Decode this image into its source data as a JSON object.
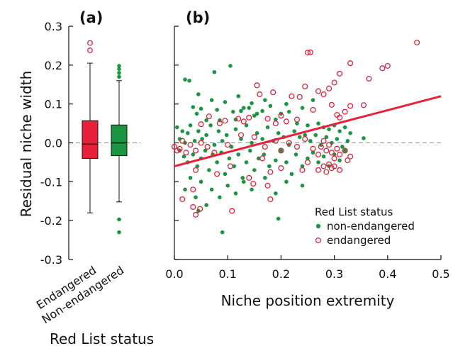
{
  "chart_data": [
    {
      "panel": "(a)",
      "type": "box",
      "ylabel": "Residual niche width",
      "xlabel": "Red List status",
      "ylim": [
        -0.3,
        0.3
      ],
      "yticks": [
        "0.3",
        "0.2",
        "0.1",
        "0.0",
        "-0.1",
        "-0.2",
        "-0.3"
      ],
      "yticks_values": [
        0.3,
        0.2,
        0.1,
        0.0,
        -0.1,
        -0.2,
        -0.3
      ],
      "categories": [
        "Endangered",
        "Non-endangered"
      ],
      "reference_line": 0.0,
      "boxes": [
        {
          "category": "Endangered",
          "color": "#e8203a",
          "whisker_low": -0.18,
          "q1": -0.04,
          "median": -0.003,
          "q3": 0.057,
          "whisker_high": 0.205,
          "outliers": [
            0.238,
            0.257
          ]
        },
        {
          "category": "Non-endangered",
          "color": "#1a9641",
          "whisker_low": -0.152,
          "q1": -0.033,
          "median": 0.0,
          "q3": 0.046,
          "whisker_high": 0.16,
          "outliers": [
            0.17,
            0.18,
            0.19,
            0.198,
            -0.197,
            -0.23
          ]
        }
      ]
    },
    {
      "panel": "(b)",
      "type": "scatter",
      "xlabel": "Niche position extremity",
      "xlim": [
        0.0,
        0.5
      ],
      "ylim": [
        -0.3,
        0.3
      ],
      "xticks": [
        "0.0",
        "0.1",
        "0.2",
        "0.3",
        "0.4",
        "0.5"
      ],
      "xticks_values": [
        0.0,
        0.1,
        0.2,
        0.3,
        0.4,
        0.5
      ],
      "reference_line": 0.0,
      "regression_line": {
        "x": [
          0.0,
          0.5
        ],
        "y": [
          -0.06,
          0.12
        ],
        "color": "#e8203a"
      },
      "legend": {
        "title": "Red List status",
        "position": "lower-right",
        "entries": [
          {
            "label": "non-endangered",
            "marker": "filled",
            "color": "#1a9641"
          },
          {
            "label": "endangered",
            "marker": "open",
            "color": "#e8203a"
          }
        ]
      },
      "series": [
        {
          "name": "non-endangered",
          "marker": "filled",
          "color": "#1a9641",
          "points": [
            [
              0.02,
              0.163
            ],
            [
              0.028,
              0.16
            ],
            [
              0.035,
              0.092
            ],
            [
              0.042,
              0.075
            ],
            [
              0.045,
              0.125
            ],
            [
              0.05,
              0.088
            ],
            [
              0.06,
              0.058
            ],
            [
              0.07,
              0.11
            ],
            [
              0.075,
              0.182
            ],
            [
              0.08,
              0.085
            ],
            [
              0.085,
              0.058
            ],
            [
              0.095,
              0.105
            ],
            [
              0.105,
              0.198
            ],
            [
              0.11,
              0.08
            ],
            [
              0.115,
              0.06
            ],
            [
              0.12,
              0.12
            ],
            [
              0.125,
              0.082
            ],
            [
              0.13,
              0.09
            ],
            [
              0.14,
              0.09
            ],
            [
              0.145,
              0.102
            ],
            [
              0.15,
              0.07
            ],
            [
              0.155,
              0.075
            ],
            [
              0.165,
              0.082
            ],
            [
              0.17,
              0.11
            ],
            [
              0.18,
              0.095
            ],
            [
              0.19,
              0.06
            ],
            [
              0.2,
              0.075
            ],
            [
              0.21,
              0.1
            ],
            [
              0.215,
              0.08
            ],
            [
              0.23,
              0.05
            ],
            [
              0.24,
              0.09
            ],
            [
              0.25,
              0.045
            ],
            [
              0.26,
              0.11
            ],
            [
              0.27,
              0.05
            ],
            [
              0.28,
              0.04
            ],
            [
              0.29,
              0.035
            ],
            [
              0.3,
              0.045
            ],
            [
              0.31,
              0.03
            ],
            [
              0.32,
              0.04
            ],
            [
              0.33,
              0.025
            ],
            [
              0.355,
              0.012
            ],
            [
              0.005,
              0.04
            ],
            [
              0.01,
              0.01
            ],
            [
              0.015,
              0.03
            ],
            [
              0.02,
              0.0
            ],
            [
              0.025,
              0.025
            ],
            [
              0.03,
              0.045
            ],
            [
              0.038,
              0.005
            ],
            [
              0.045,
              0.03
            ],
            [
              0.052,
              0.01
            ],
            [
              0.06,
              0.02
            ],
            [
              0.068,
              0.045
            ],
            [
              0.075,
              -0.005
            ],
            [
              0.083,
              0.03
            ],
            [
              0.09,
              0.005
            ],
            [
              0.098,
              0.02
            ],
            [
              0.107,
              -0.01
            ],
            [
              0.115,
              0.035
            ],
            [
              0.125,
              0.01
            ],
            [
              0.135,
              0.045
            ],
            [
              0.145,
              0.0
            ],
            [
              0.155,
              0.025
            ],
            [
              0.165,
              0.01
            ],
            [
              0.175,
              0.04
            ],
            [
              0.185,
              0.005
            ],
            [
              0.195,
              0.025
            ],
            [
              0.205,
              0.015
            ],
            [
              0.215,
              -0.005
            ],
            [
              0.225,
              0.03
            ],
            [
              0.235,
              0.015
            ],
            [
              0.245,
              0.02
            ],
            [
              0.255,
              0.005
            ],
            [
              0.265,
              0.02
            ],
            [
              0.275,
              -0.005
            ],
            [
              0.285,
              0.015
            ],
            [
              0.295,
              0.0
            ],
            [
              0.305,
              0.01
            ],
            [
              0.315,
              -0.01
            ],
            [
              0.325,
              0.005
            ],
            [
              0.01,
              -0.02
            ],
            [
              0.018,
              -0.035
            ],
            [
              0.025,
              -0.05
            ],
            [
              0.035,
              -0.03
            ],
            [
              0.043,
              -0.06
            ],
            [
              0.05,
              -0.04
            ],
            [
              0.058,
              -0.02
            ],
            [
              0.065,
              -0.07
            ],
            [
              0.072,
              -0.03
            ],
            [
              0.08,
              -0.05
            ],
            [
              0.088,
              -0.025
            ],
            [
              0.095,
              -0.08
            ],
            [
              0.103,
              -0.04
            ],
            [
              0.112,
              -0.06
            ],
            [
              0.12,
              -0.03
            ],
            [
              0.128,
              -0.09
            ],
            [
              0.135,
              -0.05
            ],
            [
              0.142,
              -0.02
            ],
            [
              0.15,
              -0.07
            ],
            [
              0.158,
              -0.04
            ],
            [
              0.168,
              -0.03
            ],
            [
              0.178,
              -0.06
            ],
            [
              0.19,
              -0.045
            ],
            [
              0.2,
              -0.02
            ],
            [
              0.21,
              -0.05
            ],
            [
              0.22,
              -0.08
            ],
            [
              0.228,
              -0.03
            ],
            [
              0.24,
              -0.06
            ],
            [
              0.25,
              -0.04
            ],
            [
              0.26,
              -0.025
            ],
            [
              0.27,
              -0.05
            ],
            [
              0.28,
              -0.035
            ],
            [
              0.29,
              -0.06
            ],
            [
              0.3,
              -0.03
            ],
            [
              0.31,
              -0.045
            ],
            [
              0.32,
              -0.02
            ],
            [
              0.02,
              -0.12
            ],
            [
              0.03,
              -0.09
            ],
            [
              0.04,
              -0.14
            ],
            [
              0.05,
              -0.1
            ],
            [
              0.06,
              -0.16
            ],
            [
              0.07,
              -0.12
            ],
            [
              0.085,
              -0.14
            ],
            [
              0.1,
              -0.11
            ],
            [
              0.115,
              -0.13
            ],
            [
              0.13,
              -0.1
            ],
            [
              0.145,
              -0.12
            ],
            [
              0.17,
              -0.09
            ],
            [
              0.19,
              -0.13
            ],
            [
              0.21,
              -0.1
            ],
            [
              0.24,
              -0.11
            ],
            [
              0.09,
              -0.23
            ],
            [
              0.195,
              -0.195
            ],
            [
              0.045,
              -0.175
            ]
          ]
        },
        {
          "name": "endangered",
          "marker": "open",
          "color": "#e8203a",
          "points": [
            [
              0.455,
              0.258
            ],
            [
              0.4,
              0.198
            ],
            [
              0.39,
              0.192
            ],
            [
              0.33,
              0.205
            ],
            [
              0.365,
              0.165
            ],
            [
              0.25,
              0.232
            ],
            [
              0.255,
              0.233
            ],
            [
              0.31,
              0.178
            ],
            [
              0.3,
              0.155
            ],
            [
              0.29,
              0.14
            ],
            [
              0.28,
              0.125
            ],
            [
              0.27,
              0.133
            ],
            [
              0.295,
              0.098
            ],
            [
              0.245,
              0.145
            ],
            [
              0.235,
              0.118
            ],
            [
              0.22,
              0.12
            ],
            [
              0.185,
              0.13
            ],
            [
              0.155,
              0.148
            ],
            [
              0.16,
              0.125
            ],
            [
              0.355,
              0.097
            ],
            [
              0.33,
              0.095
            ],
            [
              0.32,
              0.08
            ],
            [
              0.305,
              0.072
            ],
            [
              0.31,
              0.065
            ],
            [
              0.26,
              0.085
            ],
            [
              0.23,
              0.06
            ],
            [
              0.21,
              0.055
            ],
            [
              0.2,
              0.07
            ],
            [
              0.19,
              0.05
            ],
            [
              0.175,
              0.062
            ],
            [
              0.14,
              0.065
            ],
            [
              0.13,
              0.055
            ],
            [
              0.12,
              0.062
            ],
            [
              0.095,
              0.057
            ],
            [
              0.085,
              0.05
            ],
            [
              0.065,
              0.068
            ],
            [
              0.05,
              0.048
            ],
            [
              0.0,
              -0.01
            ],
            [
              0.005,
              -0.02
            ],
            [
              0.01,
              -0.015
            ],
            [
              0.015,
              0.005
            ],
            [
              0.022,
              -0.025
            ],
            [
              0.03,
              -0.005
            ],
            [
              0.04,
              -0.02
            ],
            [
              0.05,
              0.0
            ],
            [
              0.062,
              -0.01
            ],
            [
              0.075,
              -0.025
            ],
            [
              0.1,
              -0.005
            ],
            [
              0.125,
              0.02
            ],
            [
              0.15,
              0.015
            ],
            [
              0.17,
              -0.01
            ],
            [
              0.19,
              0.005
            ],
            [
              0.2,
              -0.02
            ],
            [
              0.215,
              0.0
            ],
            [
              0.23,
              -0.01
            ],
            [
              0.245,
              0.01
            ],
            [
              0.26,
              -0.015
            ],
            [
              0.27,
              -0.03
            ],
            [
              0.275,
              -0.01
            ],
            [
              0.28,
              0.005
            ],
            [
              0.285,
              -0.02
            ],
            [
              0.29,
              -0.005
            ],
            [
              0.295,
              -0.025
            ],
            [
              0.3,
              -0.04
            ],
            [
              0.305,
              -0.015
            ],
            [
              0.31,
              -0.03
            ],
            [
              0.32,
              -0.02
            ],
            [
              0.325,
              -0.045
            ],
            [
              0.33,
              -0.035
            ],
            [
              0.29,
              -0.055
            ],
            [
              0.295,
              -0.065
            ],
            [
              0.28,
              -0.06
            ],
            [
              0.3,
              -0.06
            ],
            [
              0.27,
              -0.07
            ],
            [
              0.285,
              -0.075
            ],
            [
              0.31,
              -0.07
            ],
            [
              0.04,
              -0.07
            ],
            [
              0.08,
              -0.08
            ],
            [
              0.105,
              -0.06
            ],
            [
              0.14,
              -0.09
            ],
            [
              0.165,
              -0.04
            ],
            [
              0.18,
              -0.075
            ],
            [
              0.2,
              -0.065
            ],
            [
              0.24,
              -0.07
            ],
            [
              0.25,
              -0.05
            ],
            [
              0.015,
              -0.145
            ],
            [
              0.035,
              -0.165
            ],
            [
              0.04,
              -0.185
            ],
            [
              0.048,
              -0.17
            ],
            [
              0.108,
              -0.175
            ],
            [
              0.148,
              -0.105
            ],
            [
              0.175,
              -0.11
            ],
            [
              0.18,
              -0.145
            ],
            [
              0.035,
              -0.12
            ]
          ]
        }
      ]
    }
  ]
}
